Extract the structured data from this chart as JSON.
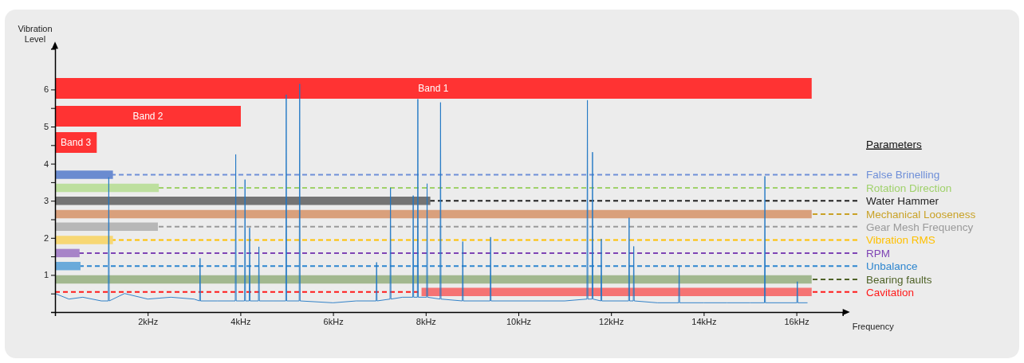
{
  "chart_data": {
    "type": "line",
    "xlabel": "Frequency",
    "ylabel": "Vibration Level",
    "legend_title": "Parameters",
    "xlim": [
      0,
      17
    ],
    "ylim": [
      0,
      7.1
    ],
    "xticks": [
      {
        "value": 2,
        "label": "2kHz"
      },
      {
        "value": 4,
        "label": "4kHz"
      },
      {
        "value": 6,
        "label": "6kHz"
      },
      {
        "value": 8,
        "label": "8kHz"
      },
      {
        "value": 10,
        "label": "10kHz"
      },
      {
        "value": 12,
        "label": "12kHz"
      },
      {
        "value": 14,
        "label": "14kHz"
      },
      {
        "value": 16,
        "label": "16kHz"
      }
    ],
    "yticks": [
      {
        "value": 0.5,
        "label": null
      },
      1,
      {
        "value": 1.5,
        "label": null
      },
      2,
      {
        "value": 2.5,
        "label": null
      },
      3,
      {
        "value": 3.5,
        "label": null
      },
      4,
      {
        "value": 4.5,
        "label": null
      },
      5,
      {
        "value": 5.5,
        "label": null
      },
      6
    ],
    "grid": false,
    "marker": "none",
    "ref_lines": [
      {
        "axis": "y",
        "value": 3.7,
        "label": "False Brinelling",
        "color": "#6f8fd8",
        "line_style": "dashed"
      },
      {
        "axis": "y",
        "value": 3.35,
        "label": "Rotation Direction",
        "color": "#9fd16a",
        "line_style": "dashed"
      },
      {
        "axis": "y",
        "value": 3.0,
        "label": "Water Hammer",
        "color": "#222222",
        "line_style": "dashed"
      },
      {
        "axis": "y",
        "value": 2.64,
        "label": "Mechanical Looseness",
        "color": "#c9a227",
        "line_style": "dashed"
      },
      {
        "axis": "y",
        "value": 2.3,
        "label": "Gear Mesh Frequency",
        "color": "#9a9a9a",
        "line_style": "dashed"
      },
      {
        "axis": "y",
        "value": 1.94,
        "label": "Vibration RMS",
        "color": "#ffc000",
        "line_style": "dashed"
      },
      {
        "axis": "y",
        "value": 1.59,
        "label": "RPM",
        "color": "#7f45b5",
        "line_style": "dashed"
      },
      {
        "axis": "y",
        "value": 1.24,
        "label": "Unbalance",
        "color": "#2e86cf",
        "line_style": "dashed"
      },
      {
        "axis": "y",
        "value": 0.88,
        "label": "Bearing faults",
        "color": "#4f6228",
        "line_style": "dashed"
      },
      {
        "axis": "y",
        "value": 0.54,
        "label": "Cavitation",
        "color": "#ff1a1a",
        "line_style": "dashed"
      }
    ],
    "series": [
      {
        "name": "Band 1",
        "color": "#ff3333",
        "x": [
          0,
          16.33
        ],
        "values": [
          6.03,
          6.03
        ]
      },
      {
        "name": "Band 2",
        "color": "#ff3333",
        "x": [
          0,
          4.01
        ],
        "values": [
          5.28,
          5.28
        ]
      },
      {
        "name": "Band 3",
        "color": "#ff3333",
        "x": [
          0,
          0.9
        ],
        "values": [
          4.57,
          4.57
        ]
      },
      {
        "color": "#6a8bd0",
        "x": [
          0,
          1.25
        ],
        "values": [
          3.7,
          3.7
        ]
      },
      {
        "color": "#bddf9e",
        "x": [
          0,
          2.24
        ],
        "values": [
          3.35,
          3.35
        ]
      },
      {
        "color": "#747474",
        "x": [
          0,
          8.1
        ],
        "values": [
          3.0,
          3.0
        ]
      },
      {
        "color": "#d9a07c",
        "x": [
          0,
          16.33
        ],
        "values": [
          2.64,
          2.64
        ]
      },
      {
        "color": "#b7b7b7",
        "x": [
          0,
          2.22
        ],
        "values": [
          2.3,
          2.3
        ]
      },
      {
        "color": "#f7d774",
        "x": [
          0,
          1.25
        ],
        "values": [
          1.94,
          1.94
        ]
      },
      {
        "color": "#a784c8",
        "x": [
          0,
          0.53
        ],
        "values": [
          1.59,
          1.59
        ]
      },
      {
        "color": "#6aaada",
        "x": [
          0,
          0.55
        ],
        "values": [
          1.24,
          1.24
        ]
      },
      {
        "color": "#a2b88f",
        "x": [
          0,
          16.33
        ],
        "values": [
          0.88,
          0.88
        ]
      },
      {
        "color": "#f57373",
        "x": [
          7.91,
          16.33
        ],
        "values": [
          0.54,
          0.54
        ]
      },
      {
        "color": "#1f77c4",
        "x": [
          0,
          0.3,
          0.6,
          1.0,
          1.15,
          1.16,
          1.17,
          1.5,
          2.0,
          2.5,
          3.0,
          3.12,
          3.13,
          3.14,
          3.5,
          3.89,
          3.9,
          3.91,
          4.09,
          4.1,
          4.11,
          4.19,
          4.2,
          4.21,
          4.39,
          4.4,
          4.41,
          4.7,
          4.98,
          4.99,
          5.0,
          5.27,
          5.28,
          5.29,
          6.0,
          6.5,
          6.93,
          6.94,
          6.95,
          7.23,
          7.24,
          7.25,
          7.5,
          7.72,
          7.73,
          7.74,
          7.82,
          7.83,
          7.84,
          8.02,
          8.03,
          8.04,
          8.31,
          8.32,
          8.33,
          8.79,
          8.8,
          8.81,
          9.39,
          9.4,
          9.41,
          10.0,
          10.5,
          11.0,
          11.48,
          11.49,
          11.5,
          11.59,
          11.6,
          11.61,
          11.78,
          11.79,
          11.8,
          12.38,
          12.39,
          12.4,
          12.48,
          12.49,
          12.5,
          13.0,
          13.46,
          13.47,
          13.48,
          14.0,
          14.5,
          15.0,
          15.31,
          15.32,
          15.33,
          16.01,
          16.02,
          16.03,
          16.24
        ],
        "values": [
          0.5,
          0.35,
          0.4,
          0.3,
          0.3,
          3.63,
          0.3,
          0.5,
          0.35,
          0.4,
          0.35,
          0.3,
          1.45,
          0.3,
          0.3,
          0.3,
          4.25,
          0.3,
          0.3,
          3.57,
          0.3,
          0.3,
          2.27,
          0.3,
          0.3,
          1.76,
          0.3,
          0.3,
          0.3,
          5.86,
          0.3,
          0.3,
          6.15,
          0.3,
          0.25,
          0.3,
          0.3,
          1.34,
          0.3,
          0.35,
          3.35,
          0.35,
          0.4,
          0.4,
          3.14,
          0.4,
          0.4,
          5.74,
          0.4,
          0.4,
          3.46,
          0.4,
          0.35,
          5.65,
          0.35,
          0.3,
          1.9,
          0.3,
          0.3,
          2.02,
          0.3,
          0.3,
          0.3,
          0.3,
          0.35,
          5.71,
          0.35,
          0.35,
          4.31,
          0.35,
          0.3,
          1.97,
          0.3,
          0.3,
          2.54,
          0.3,
          0.3,
          1.77,
          0.3,
          0.25,
          0.25,
          1.26,
          0.25,
          0.25,
          0.25,
          0.25,
          0.25,
          3.66,
          0.25,
          0.25,
          0.82,
          0.25,
          0.25
        ]
      }
    ]
  }
}
